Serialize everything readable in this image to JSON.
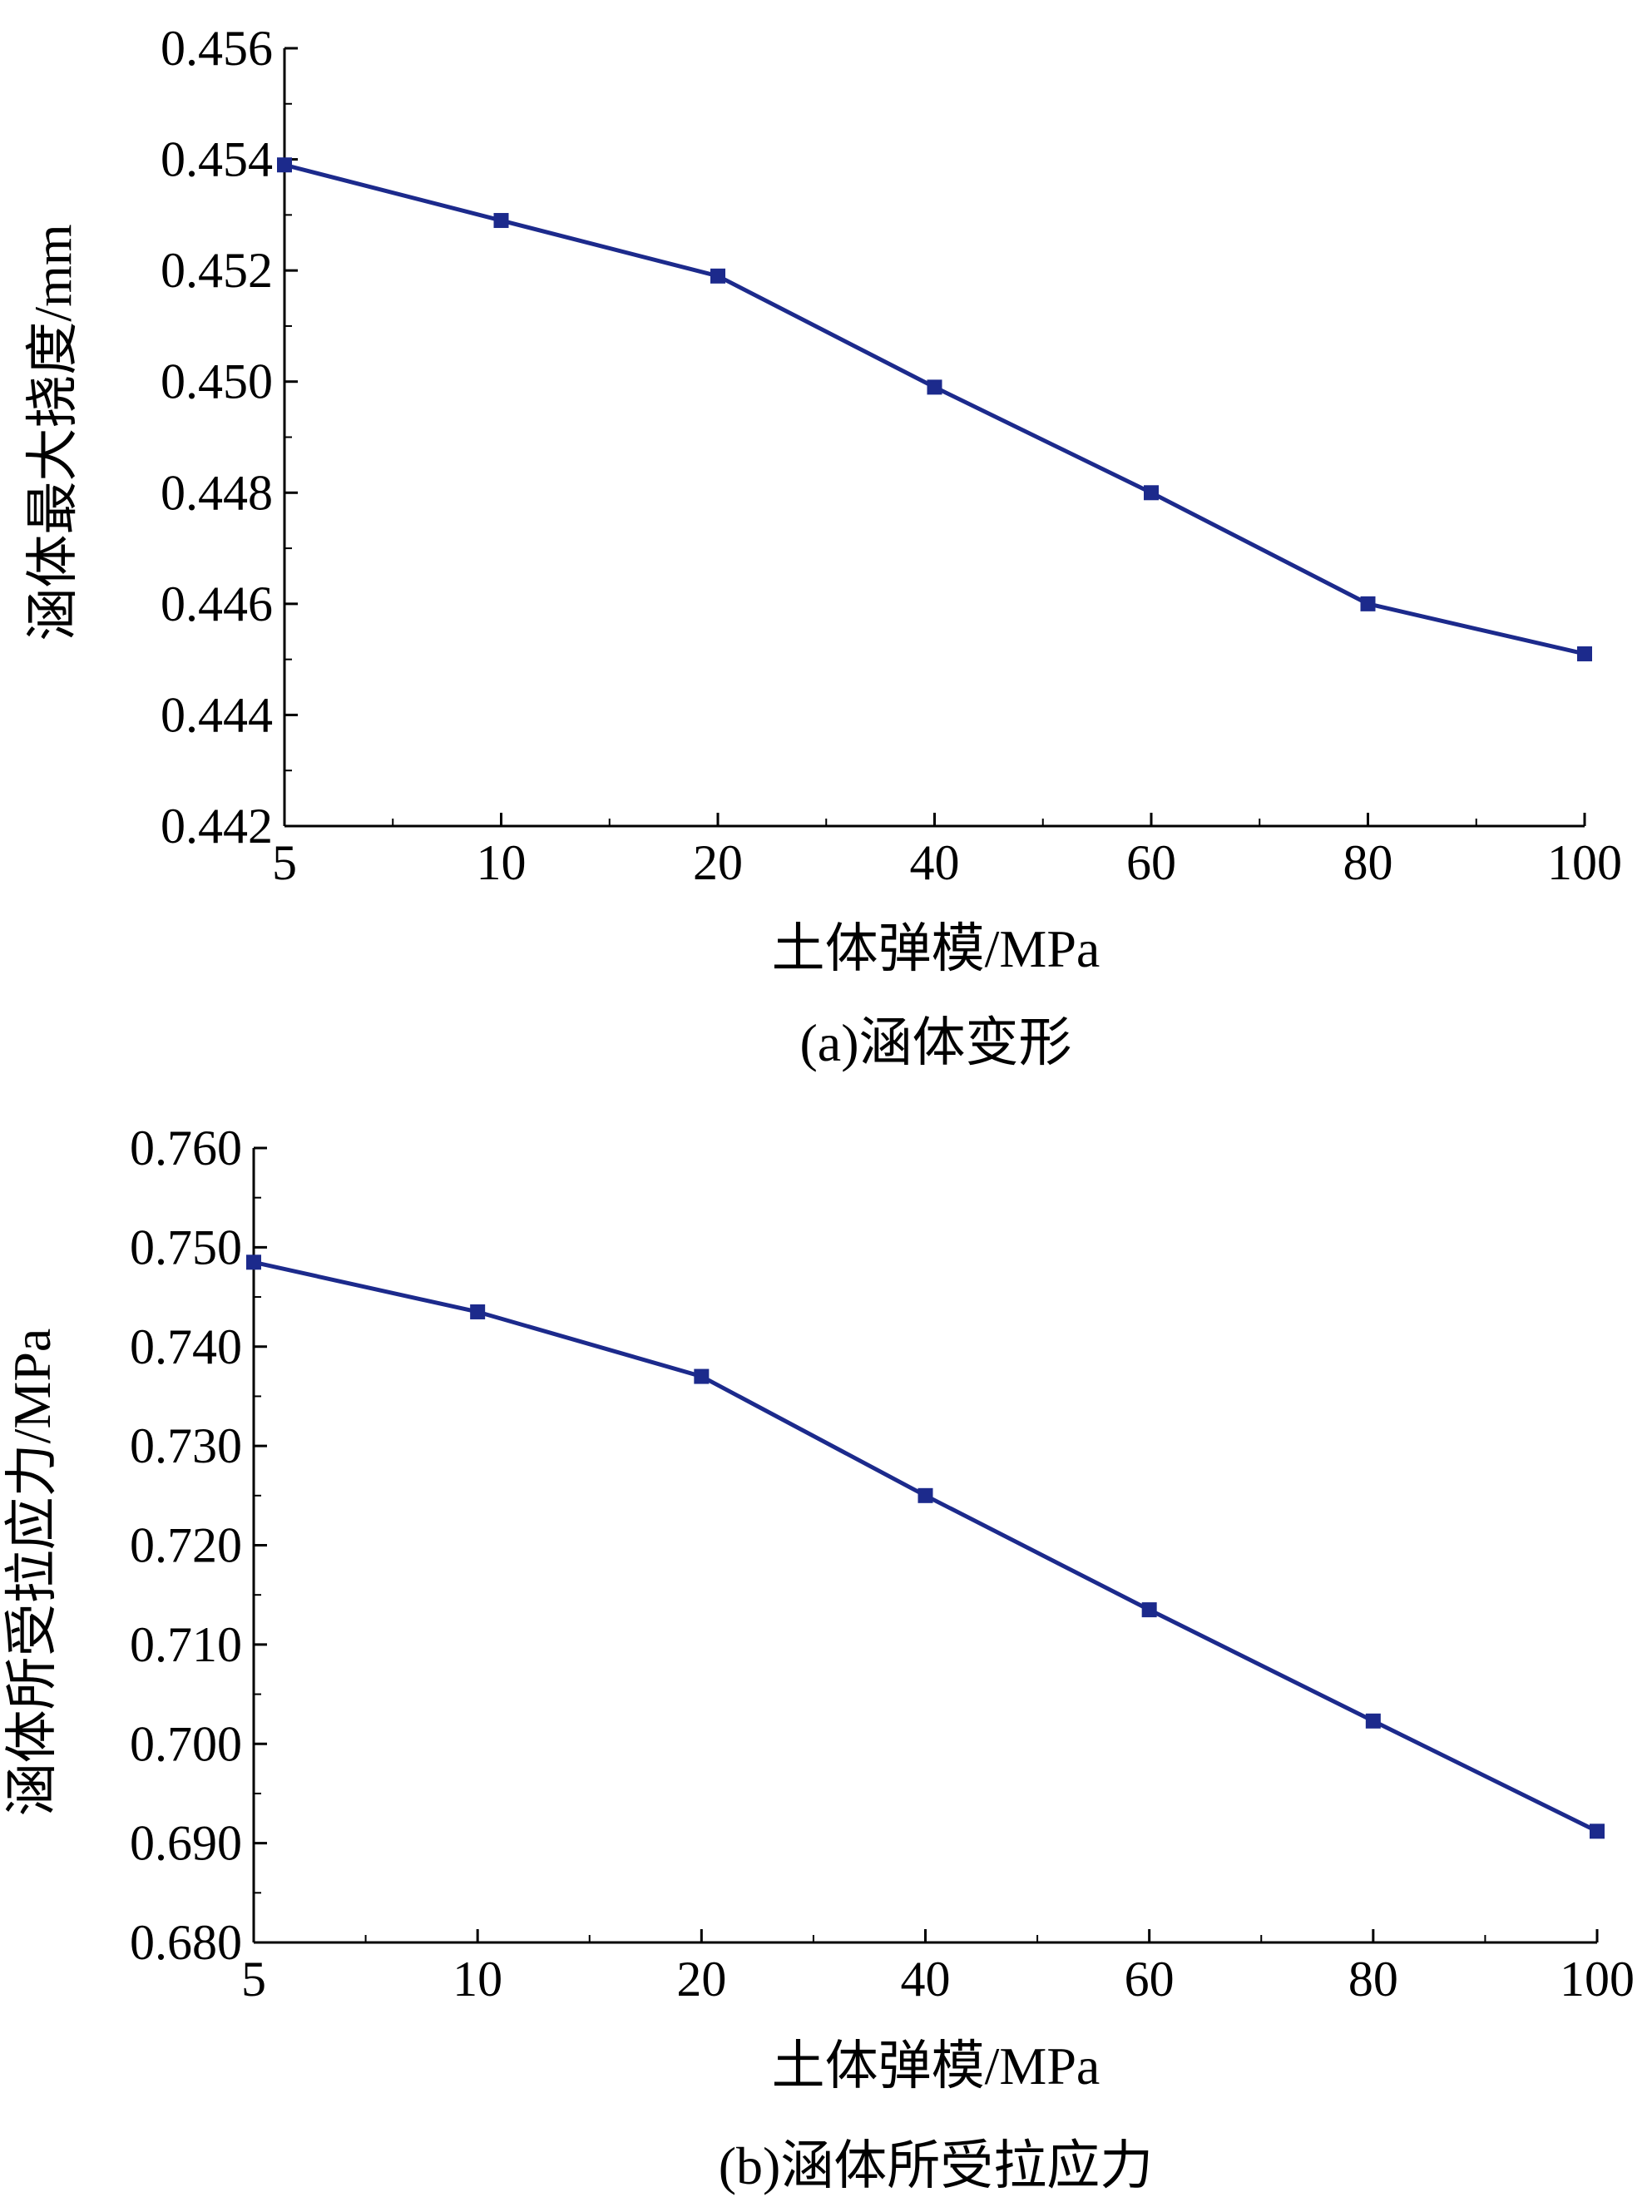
{
  "colors": {
    "series": "#1c2a8c",
    "axis": "#000000"
  },
  "chart_data": [
    {
      "type": "line",
      "caption": "(a)涵体变形",
      "xlabel": "土体弹模/MPa",
      "ylabel": "涵体最大挠度/mm",
      "x_ticks": [
        "5",
        "10",
        "20",
        "40",
        "60",
        "80",
        "100"
      ],
      "y_ticks": [
        "0.442",
        "0.444",
        "0.446",
        "0.448",
        "0.450",
        "0.452",
        "0.454",
        "0.456"
      ],
      "ylim": [
        0.442,
        0.456
      ],
      "x_scale": "categorical (equal spacing between printed ticks)",
      "grid": false,
      "series": [
        {
          "x": [
            5,
            10,
            20,
            40,
            60,
            80,
            100
          ],
          "values": [
            0.4539,
            0.4529,
            0.4519,
            0.4499,
            0.448,
            0.446,
            0.4451
          ]
        }
      ]
    },
    {
      "type": "line",
      "caption": "(b)涵体所受拉应力",
      "xlabel": "土体弹模/MPa",
      "ylabel": "涵体所受拉应力/MPa",
      "x_ticks": [
        "5",
        "10",
        "20",
        "40",
        "60",
        "80",
        "100"
      ],
      "y_ticks": [
        "0.680",
        "0.690",
        "0.700",
        "0.710",
        "0.720",
        "0.730",
        "0.740",
        "0.750",
        "0.760"
      ],
      "ylim": [
        0.68,
        0.76
      ],
      "x_scale": "categorical (equal spacing between printed ticks)",
      "grid": false,
      "series": [
        {
          "x": [
            5,
            10,
            20,
            40,
            60,
            80,
            100
          ],
          "values": [
            0.7485,
            0.7435,
            0.737,
            0.725,
            0.7135,
            0.7023,
            0.6912
          ]
        }
      ]
    }
  ]
}
